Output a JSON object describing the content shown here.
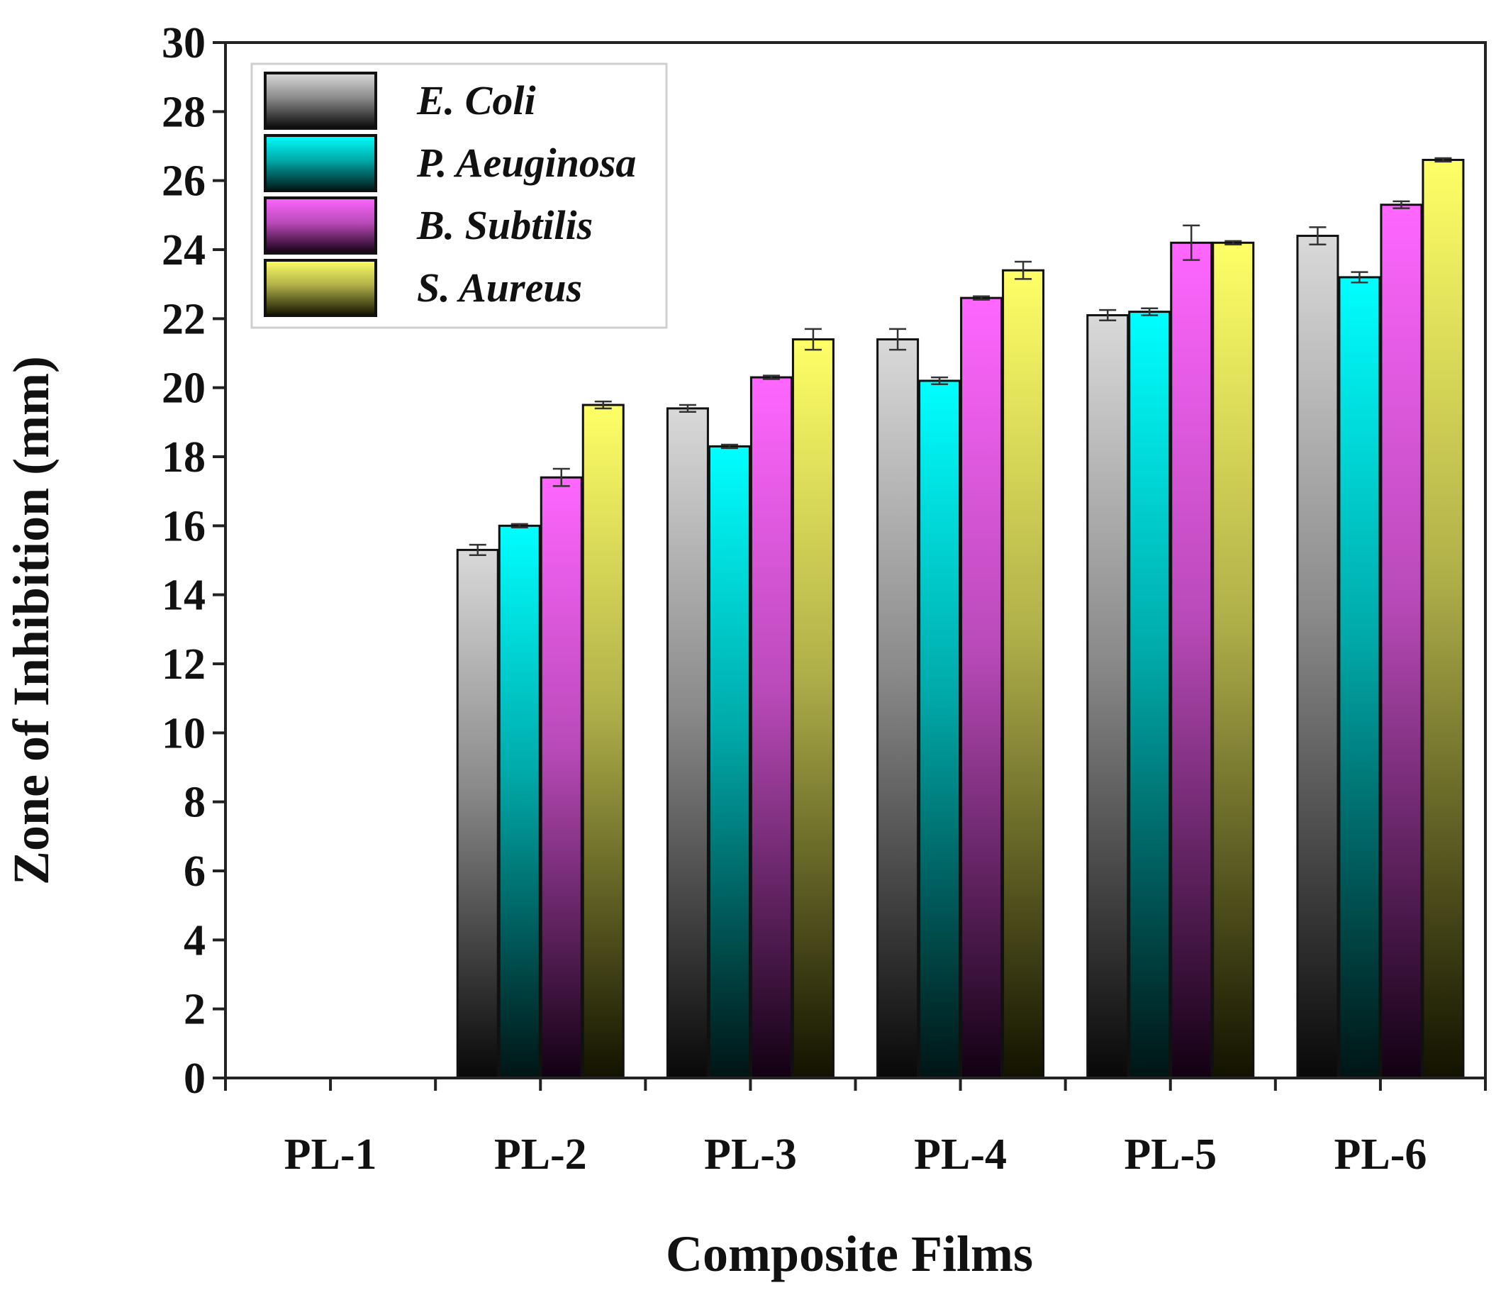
{
  "chart_data": {
    "type": "bar",
    "title": "",
    "xlabel": "Composite Films",
    "ylabel": "Zone of Inhibition  (mm)",
    "ylim": [
      0,
      30
    ],
    "ytick_step": 2,
    "grid": false,
    "legend_position": "top-left",
    "categories": [
      "PL-1",
      "PL-2",
      "PL-3",
      "PL-4",
      "PL-5",
      "PL-6"
    ],
    "series": [
      {
        "name": "E. Coli",
        "color_top": "#d9d9d9",
        "color_mid": "#8a8a8a",
        "color_bottom": "#080808",
        "values": [
          0,
          15.3,
          19.4,
          21.4,
          22.1,
          24.4
        ],
        "errors": [
          0,
          0.15,
          0.1,
          0.3,
          0.15,
          0.25
        ]
      },
      {
        "name": "P. Aeuginosa",
        "color_top": "#00ffff",
        "color_mid": "#00a9a9",
        "color_bottom": "#001414",
        "values": [
          0,
          16.0,
          18.3,
          20.2,
          22.2,
          23.2
        ],
        "errors": [
          0,
          0.05,
          0.05,
          0.1,
          0.1,
          0.15
        ]
      },
      {
        "name": "B. Subtilis",
        "color_top": "#ff66ff",
        "color_mid": "#b94ab9",
        "color_bottom": "#120012",
        "values": [
          0,
          17.4,
          20.3,
          22.6,
          24.2,
          25.3
        ],
        "errors": [
          0,
          0.25,
          0.05,
          0.05,
          0.5,
          0.1
        ]
      },
      {
        "name": "S. Aureus",
        "color_top": "#ffff66",
        "color_mid": "#b0b04a",
        "color_bottom": "#121200",
        "values": [
          0,
          19.5,
          21.4,
          23.4,
          24.2,
          26.6
        ],
        "errors": [
          0,
          0.1,
          0.3,
          0.25,
          0.05,
          0.05
        ]
      }
    ]
  }
}
